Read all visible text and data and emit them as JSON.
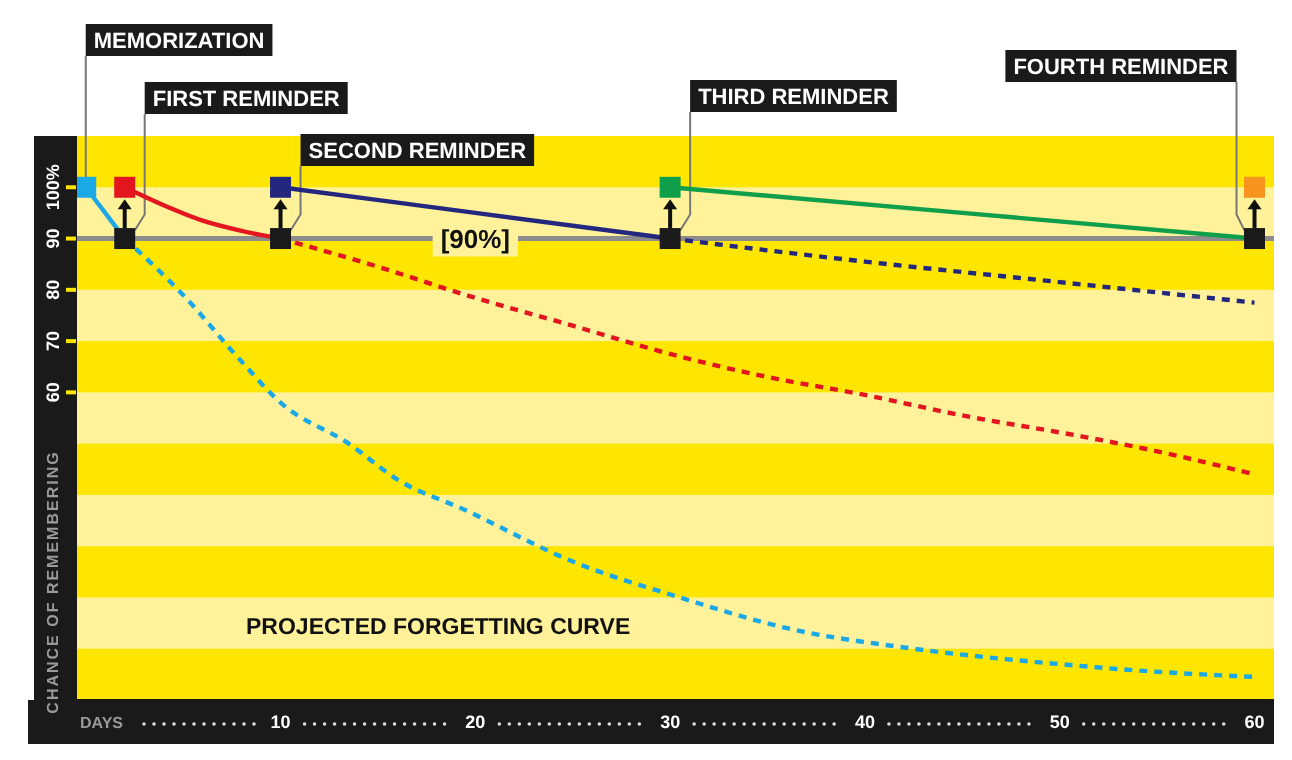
{
  "chart_data": {
    "type": "line",
    "xlabel": "DAYS",
    "ylabel": "CHANCE OF REMEMBERING",
    "xlim": [
      -0.5,
      61
    ],
    "xticks": [
      10,
      20,
      30,
      40,
      50,
      60
    ],
    "ylim": [
      0,
      110
    ],
    "yticks": [
      {
        "value": 100,
        "label": "100%"
      },
      90,
      80,
      70,
      60
    ],
    "bands": [
      {
        "axis": "y",
        "from": 90,
        "to": 100,
        "color": "#fff29a"
      },
      {
        "axis": "y",
        "from": 70,
        "to": 80,
        "color": "#fff29a"
      },
      {
        "axis": "y",
        "from": 50,
        "to": 60,
        "color": "#fff29a"
      },
      {
        "axis": "y",
        "from": 30,
        "to": 40,
        "color": "#fff29a"
      },
      {
        "axis": "y",
        "from": 10,
        "to": 20,
        "color": "#fff29a"
      }
    ],
    "ref_lines": [
      {
        "axis": "y",
        "value": 90,
        "label": "[90%]",
        "color": "#8c8c8c"
      }
    ],
    "series": [
      {
        "color": "#1ba8e6",
        "line_style": "solid",
        "x": [
          0,
          2
        ],
        "values": [
          100,
          90
        ]
      },
      {
        "color": "#1ba8e6",
        "line_style": "dotted",
        "x": [
          2,
          5,
          8,
          10,
          13.5,
          16,
          19.5,
          25,
          30.5,
          36,
          42.5,
          50,
          55,
          60
        ],
        "values": [
          90,
          79,
          66,
          58,
          50,
          43,
          37,
          27,
          20,
          14,
          10,
          7,
          5.5,
          4.5
        ]
      },
      {
        "color": "#e3151e",
        "line_style": "solid",
        "x": [
          2,
          4,
          6,
          8,
          10
        ],
        "values": [
          100,
          96.5,
          93.5,
          91.5,
          90
        ]
      },
      {
        "color": "#e3151e",
        "line_style": "dotted",
        "x": [
          10,
          15,
          19.5,
          25,
          30,
          35,
          40,
          45,
          51,
          55,
          60
        ],
        "values": [
          90,
          84.5,
          79,
          73,
          67.5,
          63,
          59.5,
          55.5,
          51.5,
          48.5,
          44
        ]
      },
      {
        "color": "#23277d",
        "line_style": "solid",
        "x": [
          10,
          20,
          30
        ],
        "values": [
          100,
          95,
          90
        ]
      },
      {
        "color": "#23277d",
        "line_style": "dotted",
        "x": [
          30,
          40,
          50,
          60
        ],
        "values": [
          90,
          85.5,
          81.5,
          77.5
        ]
      },
      {
        "color": "#0f9f4a",
        "line_style": "solid",
        "x": [
          30,
          45,
          60
        ],
        "values": [
          100,
          95,
          90
        ]
      },
      {
        "type": "scatter",
        "color": "#1a1a1a",
        "marker": "square",
        "x": [
          2,
          10,
          30,
          60
        ],
        "values": [
          90,
          90,
          90,
          90
        ]
      },
      {
        "type": "scatter",
        "marker": "square",
        "x": [
          0,
          2,
          10,
          30,
          60
        ],
        "values": [
          100,
          100,
          100,
          100,
          100
        ],
        "colors": [
          "#1ba8e6",
          "#e3151e",
          "#23277d",
          "#0f9f4a",
          "#f7941d"
        ]
      }
    ],
    "annotations": [
      {
        "text": "MEMORIZATION",
        "x": 0,
        "y": 100
      },
      {
        "text": "FIRST REMINDER",
        "x": 2,
        "y": 90
      },
      {
        "text": "SECOND REMINDER",
        "x": 10,
        "y": 90
      },
      {
        "text": "THIRD REMINDER",
        "x": 30,
        "y": 90
      },
      {
        "text": "FOURTH REMINDER",
        "x": 60,
        "y": 90
      },
      "PROJECTED FORGETTING CURVE"
    ]
  }
}
